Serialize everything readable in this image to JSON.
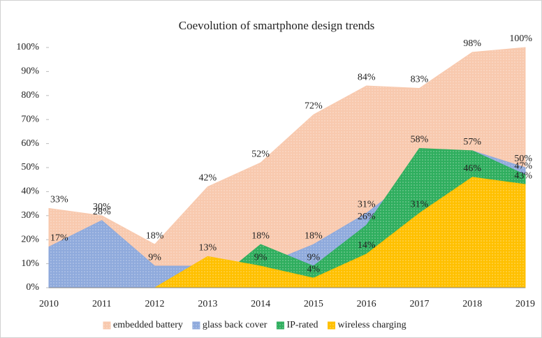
{
  "chart_data": {
    "type": "area",
    "title": "Coevolution of smartphone design trends",
    "categories": [
      "2010",
      "2011",
      "2012",
      "2013",
      "2014",
      "2015",
      "2016",
      "2017",
      "2018",
      "2019"
    ],
    "ylim": [
      0,
      100
    ],
    "yticks": [
      {
        "value": 0,
        "label": "0%"
      },
      {
        "value": 10,
        "label": "10%"
      },
      {
        "value": 20,
        "label": "20%"
      },
      {
        "value": 30,
        "label": "30%"
      },
      {
        "value": 40,
        "label": "40%"
      },
      {
        "value": 50,
        "label": "50%"
      },
      {
        "value": 60,
        "label": "60%"
      },
      {
        "value": 70,
        "label": "70%"
      },
      {
        "value": 80,
        "label": "80%"
      },
      {
        "value": 90,
        "label": "90%"
      },
      {
        "value": 100,
        "label": "100%"
      }
    ],
    "legend": "bottom",
    "series": [
      {
        "name": "embedded battery",
        "color": "#f8c9ae",
        "values": [
          33,
          30,
          18,
          42,
          52,
          72,
          84,
          83,
          98,
          100
        ],
        "value_labels": [
          "33%",
          "30%",
          "18%",
          "42%",
          "52%",
          "72%",
          "84%",
          "83%",
          "98%",
          "100%"
        ]
      },
      {
        "name": "glass back cover",
        "color": "#8faadc",
        "values": [
          17,
          28,
          9,
          9,
          9,
          18,
          31,
          48,
          57,
          50
        ],
        "value_labels": [
          "17%",
          "28%",
          "9%",
          null,
          null,
          "18%",
          "31%",
          null,
          "57%",
          "50%"
        ]
      },
      {
        "name": "IP-rated",
        "color": "#2fae5e",
        "values": [
          null,
          null,
          null,
          0,
          18,
          9,
          26,
          58,
          57,
          47
        ],
        "value_labels": [
          null,
          null,
          null,
          null,
          "18%",
          "9%",
          "26%",
          "58%",
          null,
          "47%"
        ]
      },
      {
        "name": "wireless charging",
        "color": "#ffc000",
        "values": [
          null,
          null,
          0,
          13,
          9,
          4,
          14,
          31,
          46,
          43
        ],
        "value_labels": [
          null,
          null,
          null,
          "13%",
          "9%",
          "4%",
          "14%",
          "31%",
          "46%",
          "43%"
        ]
      }
    ]
  }
}
